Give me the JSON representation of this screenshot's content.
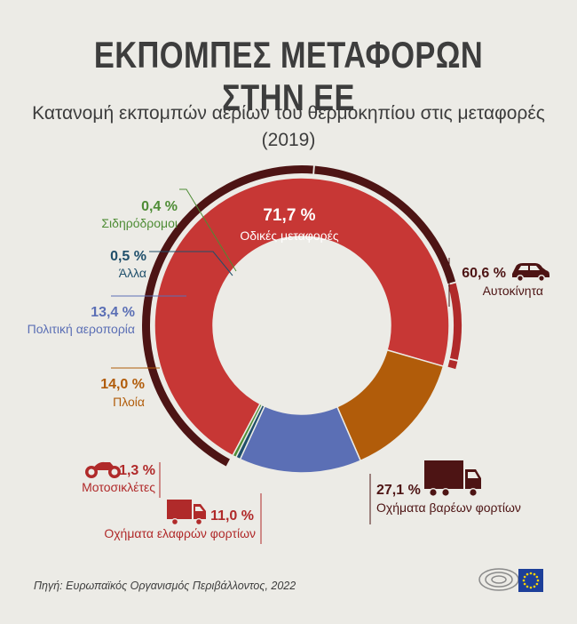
{
  "header": {
    "title": "ΕΚΠΟΜΠΕΣ ΜΕΤΑΦΟΡΩΝ ΣΤΗΝ ΕΕ",
    "subtitle_line1": "Κατανομή εκπομπών αερίων του θερμοκηπίου στις μεταφορές",
    "subtitle_line2": "(2019)"
  },
  "source": "Πηγή: Ευρωπαϊκός Οργανισμός Περιβάλλοντος, 2022",
  "chart_data": {
    "type": "pie",
    "title": "ΕΚΠΟΜΠΕΣ ΜΕΤΑΦΟΡΩΝ ΣΤΗΝ ΕΕ",
    "subtitle": "Κατανομή εκπομπών αερίων του θερμοκηπίου στις μεταφορές (2019)",
    "unit": "%",
    "slices": [
      {
        "label": "Οδικές μεταφορές",
        "value": 71.7,
        "display": "71,7 %",
        "color": "#c73735"
      },
      {
        "label": "Πλοία",
        "value": 14.0,
        "display": "14,0 %",
        "color": "#b15c0a"
      },
      {
        "label": "Πολιτική αεροπορία",
        "value": 13.4,
        "display": "13,4 %",
        "color": "#5b6fb5"
      },
      {
        "label": "Άλλα",
        "value": 0.5,
        "display": "0,5 %",
        "color": "#1f4f6b"
      },
      {
        "label": "Σιδηρόδρομοι",
        "value": 0.4,
        "display": "0,4 %",
        "color": "#4e8c35"
      }
    ],
    "road_breakdown": [
      {
        "label": "Αυτοκίνητα",
        "value": 60.6,
        "display": "60,6 %",
        "icon": "car-icon",
        "color": "#4d1414"
      },
      {
        "label": "Οχήματα βαρέων φορτίων",
        "value": 27.1,
        "display": "27,1 %",
        "icon": "truck-icon",
        "color": "#4d1414"
      },
      {
        "label": "Οχήματα ελαφρών φορτίων",
        "value": 11.0,
        "display": "11,0 %",
        "icon": "van-icon",
        "color": "#b02a2a"
      },
      {
        "label": "Μοτοσικλέτες",
        "value": 1.3,
        "display": "1,3 %",
        "icon": "motorcycle-icon",
        "color": "#b02a2a"
      }
    ]
  },
  "logo": {
    "alt": "european-parliament-logo"
  }
}
